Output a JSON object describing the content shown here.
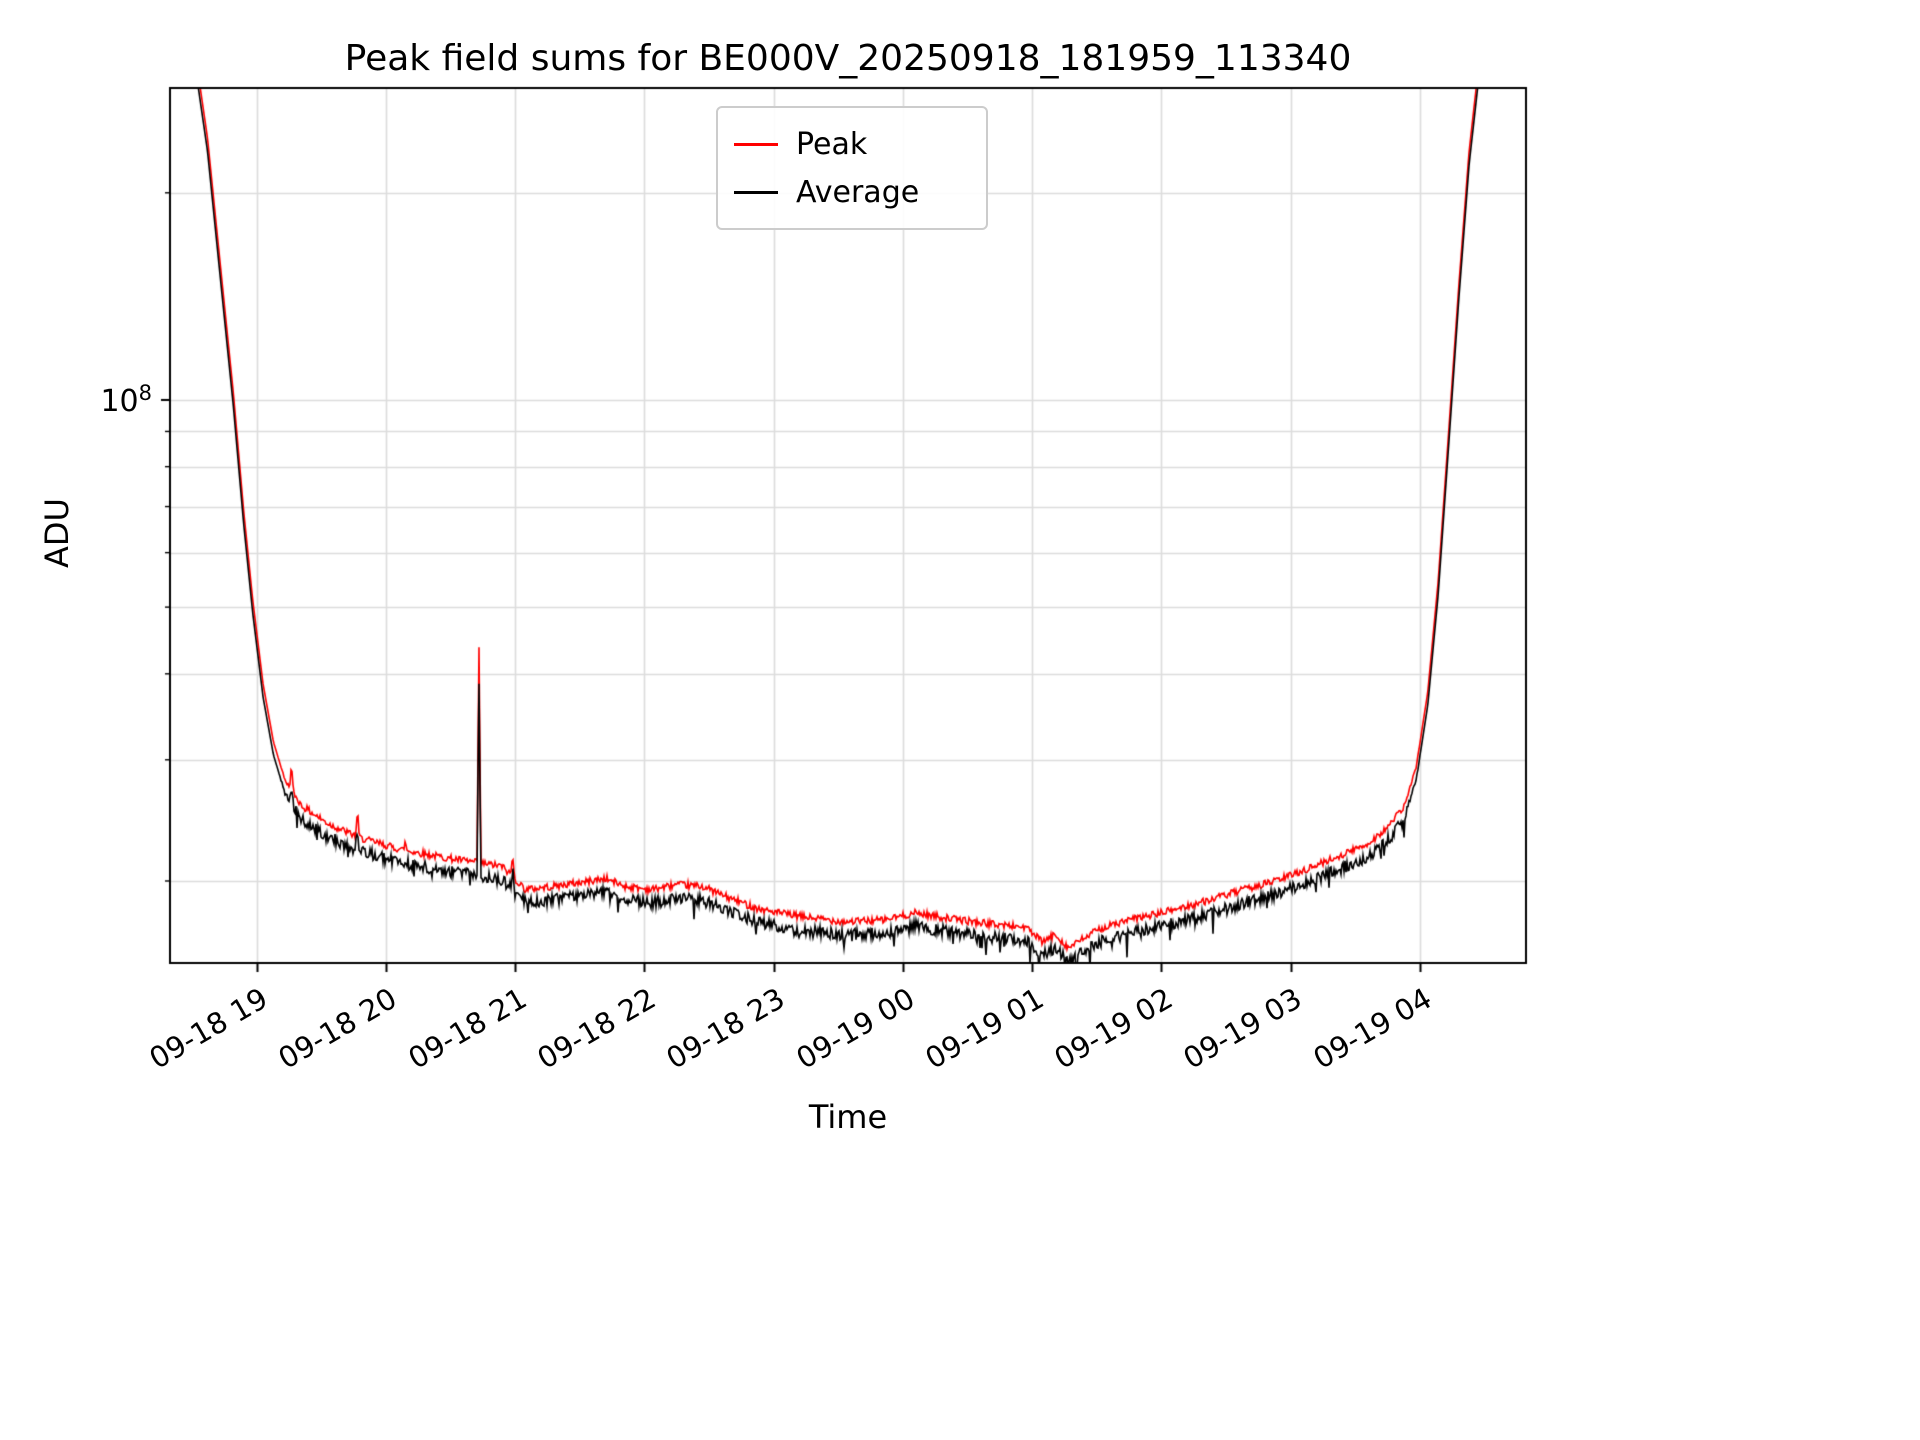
{
  "chart_data": {
    "type": "line",
    "title": "Peak field sums for BE000V_20250918_181959_113340",
    "xlabel": "Time",
    "ylabel": "ADU",
    "yscale": "log",
    "ylim": [
      15200000,
      284000000
    ],
    "xlim_hours": [
      18.33,
      28.82
    ],
    "grid": true,
    "grid_color": "#dcdcdc",
    "y_major_tick": {
      "value": 100000000,
      "label_base": "10",
      "label_exp": "8"
    },
    "y_minor_ticks": [
      20000000,
      30000000,
      40000000,
      50000000,
      60000000,
      70000000,
      80000000,
      90000000,
      200000000
    ],
    "x_ticks": [
      {
        "hour": 19,
        "label": "09-18 19"
      },
      {
        "hour": 20,
        "label": "09-18 20"
      },
      {
        "hour": 21,
        "label": "09-18 21"
      },
      {
        "hour": 22,
        "label": "09-18 22"
      },
      {
        "hour": 23,
        "label": "09-18 23"
      },
      {
        "hour": 24,
        "label": "09-19 00"
      },
      {
        "hour": 25,
        "label": "09-19 01"
      },
      {
        "hour": 26,
        "label": "09-19 02"
      },
      {
        "hour": 27,
        "label": "09-19 03"
      },
      {
        "hour": 28,
        "label": "09-19 04"
      }
    ],
    "legend_position": "upper center",
    "series": [
      {
        "name": "Peak",
        "color": "#ff0000",
        "multiplier": 1.045,
        "noise_amp": 0.012,
        "seed": 42,
        "dip_prob": 0.0,
        "dip_amp": 0.0
      },
      {
        "name": "Average",
        "color": "#000000",
        "multiplier": 1.0,
        "noise_amp": 0.02,
        "seed": 911,
        "dip_prob": 0.05,
        "dip_amp": 0.06
      }
    ],
    "noise_window": [
      19.15,
      19.35,
      27.85,
      28.02
    ],
    "baseline_points": [
      [
        18.33,
        340000000.0
      ],
      [
        18.52,
        310000000.0
      ],
      [
        18.62,
        230000000.0
      ],
      [
        18.72,
        150000000.0
      ],
      [
        18.82,
        98000000.0
      ],
      [
        18.9,
        66000000.0
      ],
      [
        18.97,
        49000000.0
      ],
      [
        19.05,
        37000000.0
      ],
      [
        19.13,
        30500000.0
      ],
      [
        19.22,
        26800000.0
      ],
      [
        19.35,
        24600000.0
      ],
      [
        19.55,
        23200000.0
      ],
      [
        19.8,
        22100000.0
      ],
      [
        20.1,
        21300000.0
      ],
      [
        20.45,
        20700000.0
      ],
      [
        20.9,
        20100000.0
      ],
      [
        21.08,
        18600000.0
      ],
      [
        21.3,
        18800000.0
      ],
      [
        21.55,
        19100000.0
      ],
      [
        21.7,
        19300000.0
      ],
      [
        21.85,
        18800000.0
      ],
      [
        22.05,
        18600000.0
      ],
      [
        22.25,
        18900000.0
      ],
      [
        22.45,
        18800000.0
      ],
      [
        22.65,
        18100000.0
      ],
      [
        22.9,
        17400000.0
      ],
      [
        23.2,
        17000000.0
      ],
      [
        23.55,
        16700000.0
      ],
      [
        23.85,
        16800000.0
      ],
      [
        24.1,
        17200000.0
      ],
      [
        24.35,
        16900000.0
      ],
      [
        24.65,
        16600000.0
      ],
      [
        24.95,
        16400000.0
      ],
      [
        25.08,
        15600000.0
      ],
      [
        25.18,
        16000000.0
      ],
      [
        25.28,
        15300000.0
      ],
      [
        25.4,
        15800000.0
      ],
      [
        25.52,
        16300000.0
      ],
      [
        25.75,
        16800000.0
      ],
      [
        26.0,
        17200000.0
      ],
      [
        26.3,
        17800000.0
      ],
      [
        26.6,
        18500000.0
      ],
      [
        26.9,
        19200000.0
      ],
      [
        27.15,
        20000000.0
      ],
      [
        27.4,
        20900000.0
      ],
      [
        27.6,
        21700000.0
      ],
      [
        27.75,
        22900000.0
      ],
      [
        27.88,
        24600000.0
      ],
      [
        27.97,
        28000000.0
      ],
      [
        28.06,
        36000000.0
      ],
      [
        28.14,
        52000000.0
      ],
      [
        28.22,
        85000000.0
      ],
      [
        28.3,
        140000000.0
      ],
      [
        28.38,
        220000000.0
      ],
      [
        28.46,
        300000000.0
      ],
      [
        28.58,
        345000000.0
      ],
      [
        28.82,
        350000000.0
      ]
    ],
    "spikes": [
      {
        "t": 19.27,
        "peak": 29500000.0,
        "avg": 27500000.0
      },
      {
        "t": 19.78,
        "peak": 25200000.0,
        "avg": 23800000.0
      },
      {
        "t": 20.15,
        "peak": 22800000.0,
        "avg": 21600000.0
      },
      {
        "t": 20.72,
        "peak": 44500000.0,
        "avg": 39000000.0
      },
      {
        "t": 20.98,
        "peak": 21800000.0,
        "avg": 20800000.0
      }
    ]
  }
}
